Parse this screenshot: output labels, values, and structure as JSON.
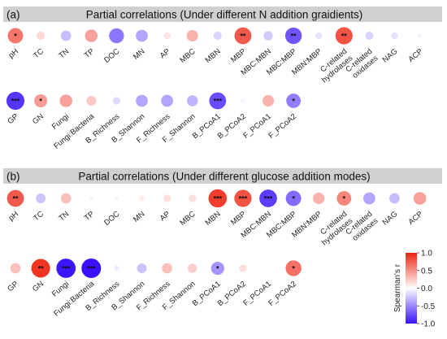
{
  "chart_data": [
    {
      "type": "heatmap",
      "panel": "(a)",
      "title": "Partial correlations (Under different N addition graidients)",
      "rows": [
        {
          "labels": [
            "pH",
            "TC",
            "TN",
            "TP",
            "DOC",
            "MN",
            "AP",
            "MBC",
            "MBN",
            "MBP",
            "MBC:MBN",
            "MBC:MBP",
            "MBN:MBP",
            "C-related hydrolases",
            "C-related oxidases",
            "NAG",
            "ACP"
          ],
          "r": [
            0.62,
            0.18,
            -0.28,
            0.42,
            -0.58,
            -0.38,
            0.12,
            0.35,
            -0.18,
            0.75,
            -0.22,
            -0.72,
            -0.12,
            0.78,
            -0.18,
            -0.12,
            -0.05
          ],
          "sig": [
            "*",
            "",
            "",
            "",
            "",
            "",
            "",
            "",
            "",
            "**",
            "",
            "**",
            "",
            "**",
            "",
            "",
            ""
          ]
        },
        {
          "labels": [
            "GP",
            "GN",
            "Fungi",
            "Fungi:Bacteria",
            "B_Richness",
            "B_Shannon",
            "F_Richness",
            "F_Shannon",
            "B_PCoA1",
            "B_PCoA2",
            "F_PCoA1",
            "F_PCoA2"
          ],
          "r": [
            -0.85,
            0.45,
            0.42,
            0.25,
            -0.15,
            -0.38,
            -0.38,
            -0.32,
            -0.75,
            -0.05,
            0.35,
            -0.55
          ],
          "sig": [
            "***",
            "*",
            "",
            "",
            "",
            "",
            "",
            "",
            "***",
            "",
            "",
            "*"
          ]
        }
      ]
    },
    {
      "type": "heatmap",
      "panel": "(b)",
      "title": "Partial correlations (Under different glucose addition modes)",
      "rows": [
        {
          "labels": [
            "pH",
            "TC",
            "TN",
            "TP",
            "DOC",
            "MN",
            "AP",
            "MBC",
            "MBN",
            "MBP",
            "MBC:MBN",
            "MBC:MBP",
            "MBN:MBP",
            "C-related hydrolases",
            "C-related oxidases",
            "NAG",
            "ACP"
          ],
          "r": [
            0.75,
            -0.25,
            0.28,
            0.05,
            0.05,
            0.08,
            0.15,
            0.15,
            0.88,
            0.78,
            -0.82,
            -0.62,
            0.35,
            0.55,
            -0.38,
            -0.28,
            0.42
          ],
          "sig": [
            "**",
            "",
            "",
            "",
            "",
            "",
            "",
            "",
            "***",
            "***",
            "***",
            "*",
            "",
            "*",
            "",
            "",
            ""
          ]
        },
        {
          "labels": [
            "GP",
            "GN",
            "Fungi",
            "Fungi:Bacteria",
            "B_Richness",
            "B_Shannon",
            "F_Richness",
            "F_Shannon",
            "B_PCoA1",
            "B_PCoA2",
            "F_PCoA1",
            "F_PCoA2"
          ],
          "r": [
            0.28,
            0.92,
            -0.98,
            -1.0,
            -0.08,
            -0.25,
            0.28,
            0.22,
            -0.45,
            0.15,
            0.0,
            0.65
          ],
          "sig": [
            "",
            "**",
            "***",
            "***",
            "",
            "",
            "",
            "",
            "*",
            "",
            "",
            "*"
          ]
        }
      ]
    }
  ],
  "colorbar": {
    "title": "Spearman's r",
    "ticks": [
      "1.0",
      "0.5",
      "0.0",
      "-0.5",
      "-1.0"
    ],
    "range": [
      -1.0,
      1.0
    ],
    "colors": {
      "negative": "#3a10ff",
      "zero": "#ffffff",
      "positive": "#ee2211"
    }
  },
  "style": {
    "banner_bg": "#d0d0d0",
    "sig_color": "#111111"
  }
}
